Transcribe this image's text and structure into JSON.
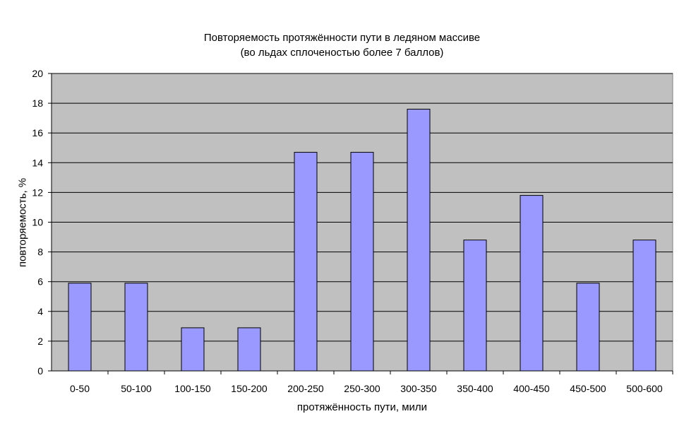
{
  "chart_data": {
    "type": "bar",
    "title": "Повторяемость протяжённости пути в ледяном массиве",
    "subtitle": "(во льдах сплоченостью более 7 баллов)",
    "xlabel": "протяжённость пути, мили",
    "ylabel": "повторяемость, %",
    "categories": [
      "0-50",
      "50-100",
      "100-150",
      "150-200",
      "200-250",
      "250-300",
      "300-350",
      "350-400",
      "400-450",
      "450-500",
      "500-600"
    ],
    "values": [
      5.9,
      5.9,
      2.9,
      2.9,
      14.7,
      14.7,
      17.6,
      8.8,
      11.8,
      5.9,
      8.8
    ],
    "ylim": [
      0,
      20
    ],
    "yticks": [
      0,
      2,
      4,
      6,
      8,
      10,
      12,
      14,
      16,
      18,
      20
    ],
    "grid": true,
    "legend": "none",
    "colors": {
      "plot_bg": "#c0c0c0",
      "bar": "#9999ff",
      "grid": "#000000"
    }
  }
}
